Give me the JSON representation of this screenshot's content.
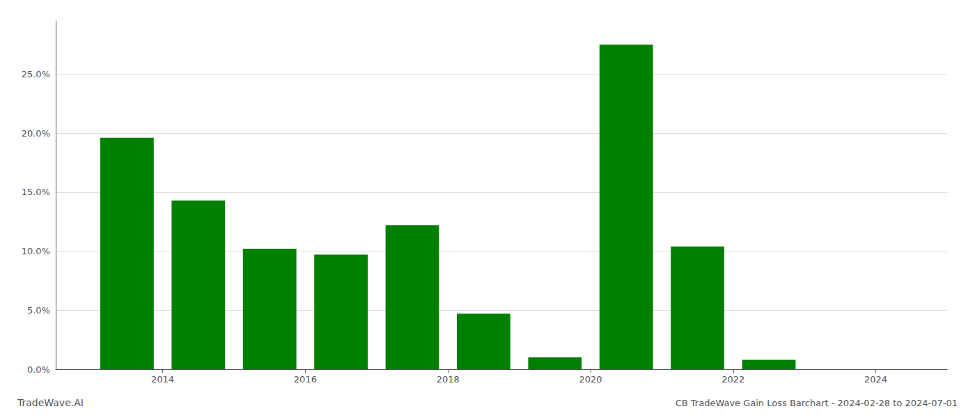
{
  "chart_data": {
    "type": "bar",
    "title": "CB TradeWave Gain Loss Barchart - 2024-02-28 to 2024-07-01",
    "annotations": [
      "TradeWave.AI"
    ],
    "x": [
      2013.5,
      2014.5,
      2015.5,
      2016.5,
      2017.5,
      2018.5,
      2019.5,
      2020.5,
      2021.5,
      2022.5,
      2023.5
    ],
    "values": [
      0.196,
      0.143,
      0.102,
      0.097,
      0.122,
      0.047,
      0.01,
      0.275,
      0.104,
      0.008,
      0.0
    ],
    "color": "#008000",
    "xlim": [
      2012.5,
      2025.0
    ],
    "xticks": [
      2014,
      2016,
      2018,
      2020,
      2022,
      2024
    ],
    "ylim": [
      0,
      0.295
    ],
    "yticks": [
      {
        "value": 0.0,
        "label": "0.0%"
      },
      {
        "value": 0.05,
        "label": "5.0%"
      },
      {
        "value": 0.1,
        "label": "10.0%"
      },
      {
        "value": 0.15,
        "label": "15.0%"
      },
      {
        "value": 0.2,
        "label": "20.0%"
      },
      {
        "value": 0.25,
        "label": "25.0%"
      }
    ],
    "grid": true
  }
}
